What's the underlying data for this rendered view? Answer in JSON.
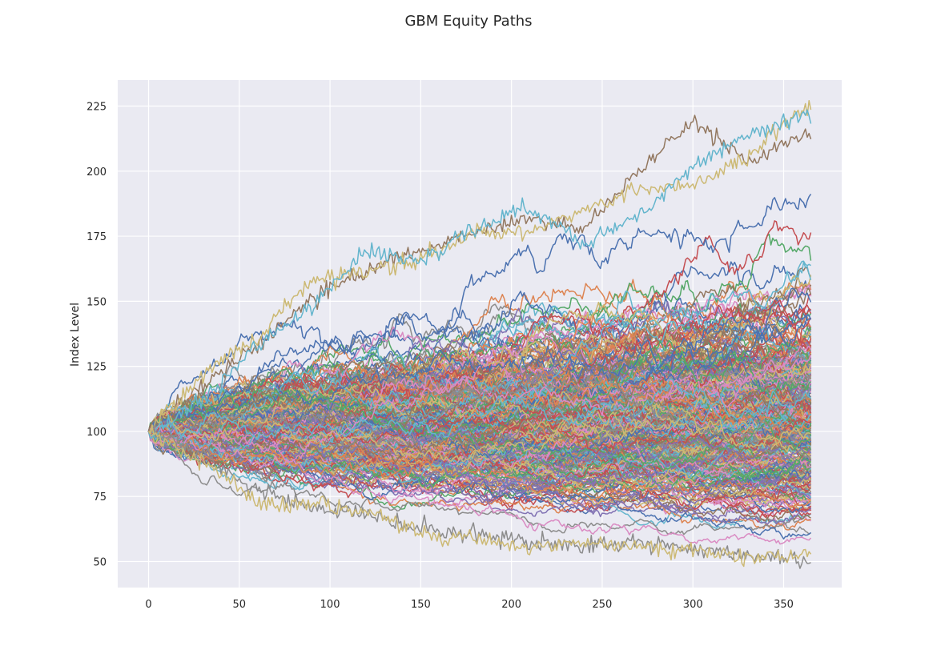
{
  "chart_data": {
    "type": "line",
    "title": "GBM Equity Paths",
    "xlabel": "",
    "ylabel": "Index Level",
    "xlim": [
      -17,
      382
    ],
    "ylim": [
      40,
      235
    ],
    "x_ticks": [
      0,
      50,
      100,
      150,
      200,
      250,
      300,
      350
    ],
    "y_ticks": [
      50,
      75,
      100,
      125,
      150,
      175,
      200,
      225
    ],
    "grid": true,
    "legend": "none",
    "background_color": "#eaeaf2",
    "grid_color": "#ffffff",
    "palette": [
      "#4c72b0",
      "#dd8452",
      "#55a868",
      "#c44e52",
      "#8172b3",
      "#937860",
      "#da8bc3",
      "#8c8c8c",
      "#ccb974",
      "#64b5cd"
    ],
    "steps": 365,
    "start_value": 100,
    "num_paths": 400,
    "highlighted_paths": [
      {
        "x": [
          0,
          30,
          60,
          90,
          120,
          150,
          180,
          210,
          240,
          270,
          300,
          330,
          365
        ],
        "y": [
          100,
          118,
          133,
          151,
          161,
          170,
          176,
          182,
          178,
          200,
          219,
          203,
          215
        ]
      },
      {
        "x": [
          0,
          30,
          60,
          90,
          120,
          150,
          180,
          210,
          240,
          270,
          300,
          330,
          365
        ],
        "y": [
          100,
          122,
          136,
          158,
          161,
          166,
          176,
          176,
          185,
          193,
          195,
          205,
          226
        ]
      },
      {
        "x": [
          0,
          30,
          60,
          90,
          120,
          150,
          180,
          210,
          240,
          270,
          300,
          330,
          365
        ],
        "y": [
          100,
          112,
          133,
          148,
          170,
          165,
          178,
          186,
          172,
          183,
          202,
          214,
          222
        ]
      },
      {
        "x": [
          0,
          30,
          60,
          90,
          120,
          150,
          180,
          210,
          240,
          270,
          300,
          330,
          365
        ],
        "y": [
          100,
          91,
          77,
          71,
          68,
          63,
          61,
          58,
          56,
          58,
          55,
          52,
          50
        ]
      },
      {
        "x": [
          0,
          30,
          60,
          90,
          120,
          150,
          180,
          210,
          240,
          270,
          300,
          330,
          365
        ],
        "y": [
          100,
          88,
          73,
          72,
          69,
          61,
          59,
          55,
          57,
          56,
          54,
          51,
          53
        ]
      }
    ]
  }
}
